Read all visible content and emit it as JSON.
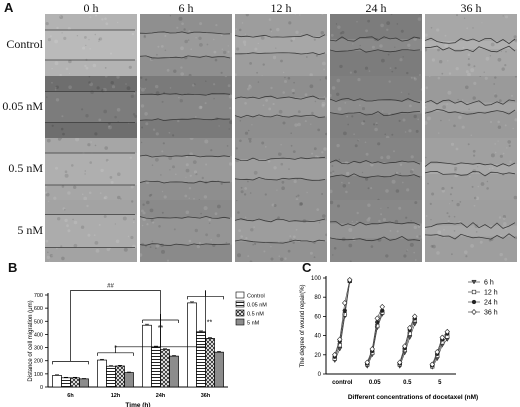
{
  "panel_a": {
    "letter": "A",
    "time_points": [
      "0 h",
      "6 h",
      "12 h",
      "24 h",
      "36 h"
    ],
    "conditions": [
      "Control",
      "0.05 nM",
      "0.5 nM",
      "5 nM"
    ]
  },
  "panel_b": {
    "letter": "B"
  },
  "panel_c": {
    "letter": "C"
  },
  "chart_data": [
    {
      "type": "bar",
      "panel": "B",
      "ylabel": "Distance of cell migration (μm)",
      "xlabel": "Time (h)",
      "categories": [
        "6h",
        "12h",
        "24h",
        "36h"
      ],
      "ylim": [
        0,
        700
      ],
      "yticks": [
        0,
        100,
        200,
        300,
        400,
        500,
        600,
        700
      ],
      "series": [
        {
          "name": "Control",
          "values": [
            88,
            205,
            470,
            640
          ],
          "errors": [
            5,
            6,
            8,
            8
          ]
        },
        {
          "name": "0.05 nM",
          "values": [
            70,
            158,
            305,
            420
          ],
          "errors": [
            4,
            5,
            6,
            7
          ]
        },
        {
          "name": "0.5 nM",
          "values": [
            70,
            160,
            285,
            370
          ],
          "errors": [
            4,
            5,
            6,
            7
          ]
        },
        {
          "name": "5 nM",
          "values": [
            62,
            110,
            235,
            265
          ],
          "errors": [
            3,
            4,
            5,
            6
          ]
        }
      ],
      "annotations": [
        "##",
        "*",
        "**",
        "**"
      ]
    },
    {
      "type": "line",
      "panel": "C",
      "ylabel": "The degree of wound repair(%)",
      "xlabel": "Different concentrations of docetaxel (nM)",
      "categories": [
        "control",
        "0.05",
        "0.5",
        "5"
      ],
      "ylim": [
        0,
        100
      ],
      "yticks": [
        0,
        20,
        40,
        60,
        80,
        100
      ],
      "series": [
        {
          "name": "6 h",
          "values": [
            [
              14,
              26,
              60,
              96
            ],
            [
              8,
              20,
              48,
              62
            ],
            [
              8,
              22,
              38,
              52
            ],
            [
              7,
              16,
              30,
              36
            ]
          ]
        },
        {
          "name": "12 h",
          "values": [
            [
              16,
              30,
              62,
              97
            ],
            [
              10,
              22,
              50,
              64
            ],
            [
              10,
              25,
              42,
              56
            ],
            [
              8,
              19,
              33,
              39
            ]
          ]
        },
        {
          "name": "24 h",
          "values": [
            [
              18,
              34,
              66,
              97
            ],
            [
              11,
              24,
              54,
              66
            ],
            [
              11,
              27,
              46,
              58
            ],
            [
              9,
              21,
              36,
              42
            ]
          ]
        },
        {
          "name": "36 h",
          "values": [
            [
              20,
              36,
              74,
              98
            ],
            [
              12,
              26,
              58,
              70
            ],
            [
              12,
              29,
              48,
              60
            ],
            [
              10,
              23,
              38,
              44
            ]
          ]
        }
      ],
      "markers": [
        "triangle-down",
        "square",
        "circle",
        "diamond"
      ]
    }
  ]
}
